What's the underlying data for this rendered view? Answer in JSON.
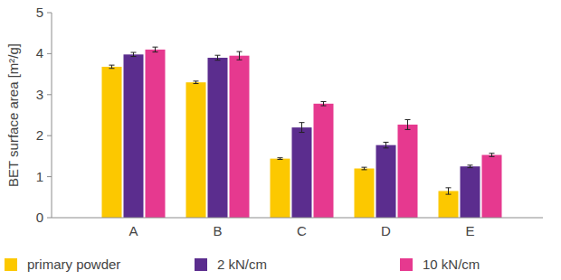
{
  "chart_data": {
    "type": "bar",
    "y_label": "BET surface area [m²/g]",
    "categories": [
      "A",
      "B",
      "C",
      "D",
      "E"
    ],
    "series": [
      {
        "name": "primary powder",
        "color": "#fcc800",
        "values": [
          3.68,
          3.3,
          1.44,
          1.2,
          0.65
        ],
        "errors": [
          0.04,
          0.03,
          0.02,
          0.03,
          0.08
        ]
      },
      {
        "name": "2 kN/cm",
        "color": "#5b2d8e",
        "values": [
          3.98,
          3.9,
          2.2,
          1.77,
          1.25
        ],
        "errors": [
          0.05,
          0.06,
          0.12,
          0.07,
          0.03
        ]
      },
      {
        "name": "10 kN/cm",
        "color": "#e6398f",
        "values": [
          4.1,
          3.95,
          2.78,
          2.27,
          1.53
        ],
        "errors": [
          0.06,
          0.1,
          0.05,
          0.12,
          0.04
        ]
      }
    ],
    "ylim": [
      0,
      5
    ],
    "yticks": [
      0,
      1,
      2,
      3,
      4,
      5
    ],
    "grid": false,
    "legend": "bottom"
  }
}
